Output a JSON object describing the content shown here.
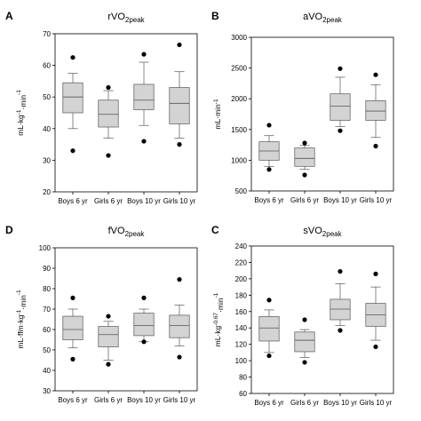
{
  "chart_data": [
    {
      "type": "box",
      "panel": "A",
      "title": {
        "base": "rVO",
        "sub": "2peak"
      },
      "ylabel": {
        "pre": "mL·kg",
        "sup": "-1",
        "mid": "·min",
        "sup2": "-1"
      },
      "ylim": [
        20,
        70
      ],
      "yticks": [
        20,
        30,
        40,
        50,
        60,
        70
      ],
      "categories": [
        "Boys 6 yr",
        "Girls 6 yr",
        "Boys 10 yr",
        "Girls 10 yr"
      ],
      "boxes": [
        {
          "whisker_low": 40,
          "q1": 45,
          "median": 50,
          "q3": 54.5,
          "whisker_high": 57.5,
          "outliers": [
            33,
            62.5
          ]
        },
        {
          "whisker_low": 37,
          "q1": 40.5,
          "median": 44.5,
          "q3": 49,
          "whisker_high": 52,
          "outliers": [
            31.5,
            53
          ]
        },
        {
          "whisker_low": 41,
          "q1": 46,
          "median": 49,
          "q3": 54,
          "whisker_high": 61,
          "outliers": [
            36,
            63.5
          ]
        },
        {
          "whisker_low": 37,
          "q1": 41.5,
          "median": 48,
          "q3": 53,
          "whisker_high": 58,
          "outliers": [
            35,
            66.5
          ]
        }
      ]
    },
    {
      "type": "box",
      "panel": "B",
      "title": {
        "base": "aVO",
        "sub": "2peak"
      },
      "ylabel": {
        "pre": "mL·min",
        "sup": "-1",
        "mid": "",
        "sup2": ""
      },
      "ylim": [
        500,
        3000
      ],
      "yticks": [
        500,
        1000,
        1500,
        2000,
        2500,
        3000
      ],
      "categories": [
        "Boys 6 yr",
        "Girls 6 yr",
        "Boys 10 yr",
        "Girls 10 yr"
      ],
      "boxes": [
        {
          "whisker_low": 900,
          "q1": 1000,
          "median": 1150,
          "q3": 1300,
          "whisker_high": 1400,
          "outliers": [
            850,
            1570
          ]
        },
        {
          "whisker_low": 850,
          "q1": 900,
          "median": 1030,
          "q3": 1200,
          "whisker_high": 1240,
          "outliers": [
            760,
            1280
          ]
        },
        {
          "whisker_low": 1550,
          "q1": 1650,
          "median": 1880,
          "q3": 2080,
          "whisker_high": 2350,
          "outliers": [
            1480,
            2490
          ]
        },
        {
          "whisker_low": 1370,
          "q1": 1650,
          "median": 1800,
          "q3": 1970,
          "whisker_high": 2230,
          "outliers": [
            1230,
            2390
          ]
        }
      ]
    },
    {
      "type": "box",
      "panel": "D",
      "title": {
        "base": "fVO",
        "sub": "2peak"
      },
      "ylabel": {
        "pre": "mL·ffm·kg",
        "sup": "-1",
        "mid": "·min",
        "sup2": "-1"
      },
      "ylim": [
        30,
        100
      ],
      "yticks": [
        30,
        40,
        50,
        60,
        70,
        80,
        90,
        100
      ],
      "categories": [
        "Boys 6 yr",
        "Girls 6 yr",
        "Boys 10 yr",
        "Girls 10 yr"
      ],
      "boxes": [
        {
          "whisker_low": 51,
          "q1": 55,
          "median": 60,
          "q3": 66.5,
          "whisker_high": 70,
          "outliers": [
            45.5,
            75.5
          ]
        },
        {
          "whisker_low": 45,
          "q1": 51.5,
          "median": 57.5,
          "q3": 61.5,
          "whisker_high": 64,
          "outliers": [
            43,
            66.5
          ]
        },
        {
          "whisker_low": 54,
          "q1": 57,
          "median": 62,
          "q3": 68,
          "whisker_high": 70,
          "outliers": [
            54,
            75.5
          ]
        },
        {
          "whisker_low": 52,
          "q1": 56,
          "median": 62,
          "q3": 67,
          "whisker_high": 72,
          "outliers": [
            46.5,
            84.5
          ]
        }
      ]
    },
    {
      "type": "box",
      "panel": "C",
      "title": {
        "base": "sVO",
        "sub": "2peak"
      },
      "ylabel": {
        "pre": "mL·kg",
        "sup": "-0.67",
        "mid": "·min",
        "sup2": "-1"
      },
      "ylim": [
        60,
        240
      ],
      "yticks": [
        60,
        80,
        100,
        120,
        140,
        160,
        180,
        200,
        220,
        240
      ],
      "categories": [
        "Boys 6 yr",
        "Girls 6 yr",
        "Boys 10 yr",
        "Girls 10 yr"
      ],
      "boxes": [
        {
          "whisker_low": 110,
          "q1": 124,
          "median": 140,
          "q3": 154,
          "whisker_high": 162,
          "outliers": [
            106,
            174
          ]
        },
        {
          "whisker_low": 104,
          "q1": 111,
          "median": 125,
          "q3": 135,
          "whisker_high": 138,
          "outliers": [
            98,
            150
          ]
        },
        {
          "whisker_low": 143,
          "q1": 150,
          "median": 163,
          "q3": 175,
          "whisker_high": 194,
          "outliers": [
            137,
            209
          ]
        },
        {
          "whisker_low": 125,
          "q1": 142,
          "median": 156,
          "q3": 170,
          "whisker_high": 190,
          "outliers": [
            117,
            206
          ]
        }
      ]
    }
  ]
}
